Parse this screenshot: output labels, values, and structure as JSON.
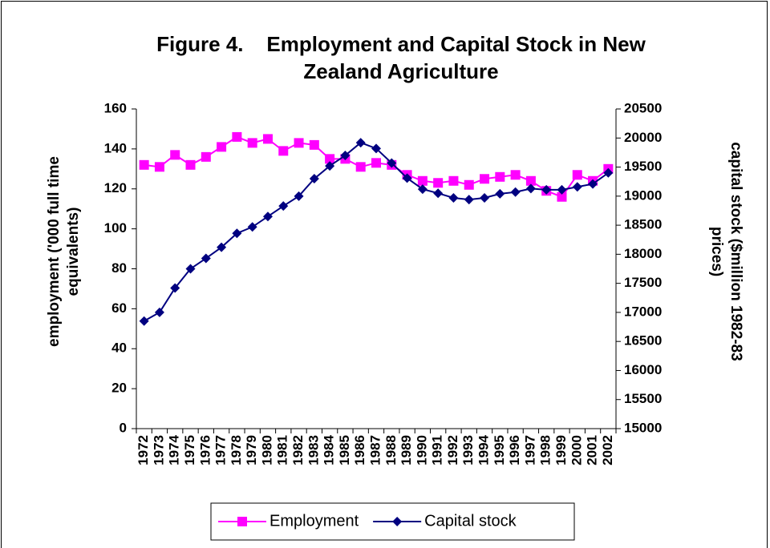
{
  "chart_data": {
    "type": "line",
    "title": "Figure 4.    Employment and Capital Stock in New Zealand Agriculture",
    "y_label": "employment ('000 full time equivalents)",
    "y2_label": "capital stock ($million 1982-83 prices)",
    "categories": [
      "1972",
      "1973",
      "1974",
      "1975",
      "1976",
      "1977",
      "1978",
      "1979",
      "1980",
      "1981",
      "1982",
      "1983",
      "1984",
      "1985",
      "1986",
      "1987",
      "1988",
      "1989",
      "1990",
      "1991",
      "1992",
      "1993",
      "1994",
      "1995",
      "1996",
      "1997",
      "1998",
      "1999",
      "2000",
      "2001",
      "2002"
    ],
    "series": [
      {
        "name": "Employment",
        "color": "#ff00ff",
        "marker": "square",
        "values": [
          132,
          131,
          137,
          132,
          136,
          141,
          146,
          143,
          145,
          139,
          143,
          142,
          135,
          135,
          131,
          133,
          132,
          127,
          124,
          123,
          124,
          122,
          125,
          126,
          127,
          124,
          119,
          116,
          127,
          124,
          130
        ]
      },
      {
        "name": "Capital stock",
        "color": "#000080",
        "marker": "diamond",
        "axis": "y2",
        "values": [
          16850,
          17000,
          17420,
          17750,
          17930,
          18120,
          18360,
          18470,
          18650,
          18830,
          19000,
          19300,
          19520,
          19700,
          19920,
          19820,
          19570,
          19310,
          19120,
          19050,
          18970,
          18940,
          18970,
          19040,
          19070,
          19130,
          19110,
          19110,
          19160,
          19210,
          19400
        ]
      }
    ],
    "ylim": [
      0,
      160
    ],
    "yticks": [
      0,
      20,
      40,
      60,
      80,
      100,
      120,
      140,
      160
    ],
    "y2lim": [
      15000,
      20500
    ],
    "y2ticks": [
      15000,
      15500,
      16000,
      16500,
      17000,
      17500,
      18000,
      18500,
      19000,
      19500,
      20000,
      20500
    ],
    "grid": false,
    "legend": "bottom"
  }
}
